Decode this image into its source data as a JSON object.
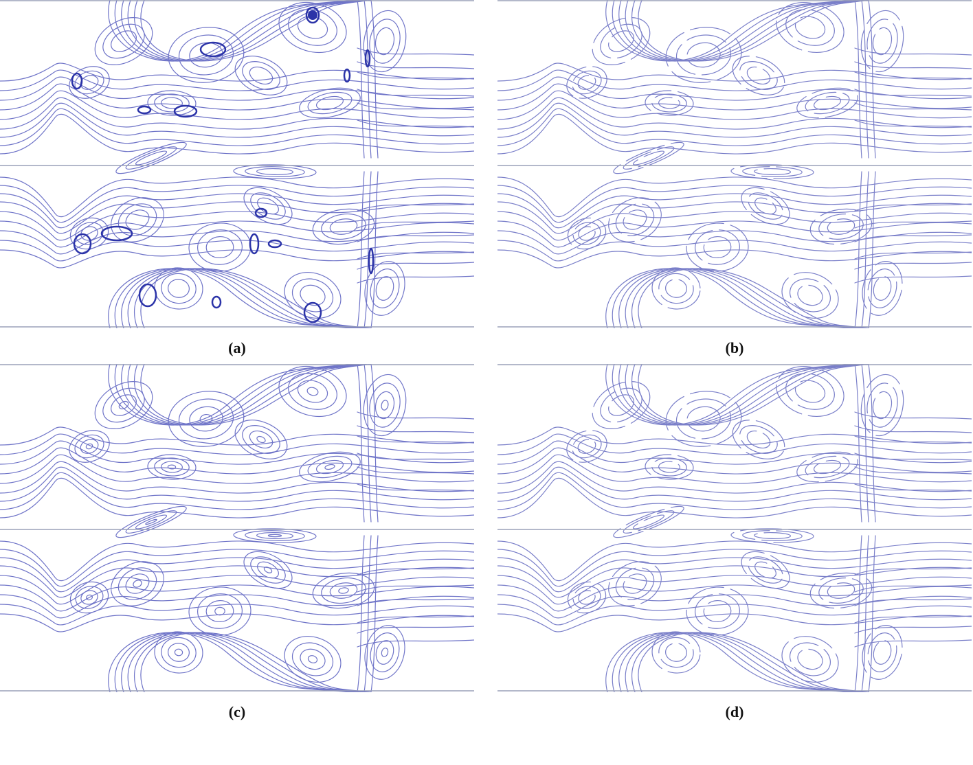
{
  "panels": [
    {
      "id": "a",
      "label": "(a)",
      "stroke": "#6f74c8",
      "vortex_fill": "#2b33a8",
      "show_cores": true
    },
    {
      "id": "b",
      "label": "(b)",
      "stroke": "#7a7fc9",
      "vortex_fill": "#2b33a8",
      "show_cores": false
    },
    {
      "id": "c",
      "label": "(c)",
      "stroke": "#6f74c8",
      "vortex_fill": "#2b33a8",
      "show_cores": false
    },
    {
      "id": "d",
      "label": "(d)",
      "stroke": "#7a7fc9",
      "vortex_fill": "#2b33a8",
      "show_cores": false
    }
  ],
  "colors": {
    "wall": "#9aa0b8",
    "background": "#ffffff",
    "caption": "#111111"
  }
}
